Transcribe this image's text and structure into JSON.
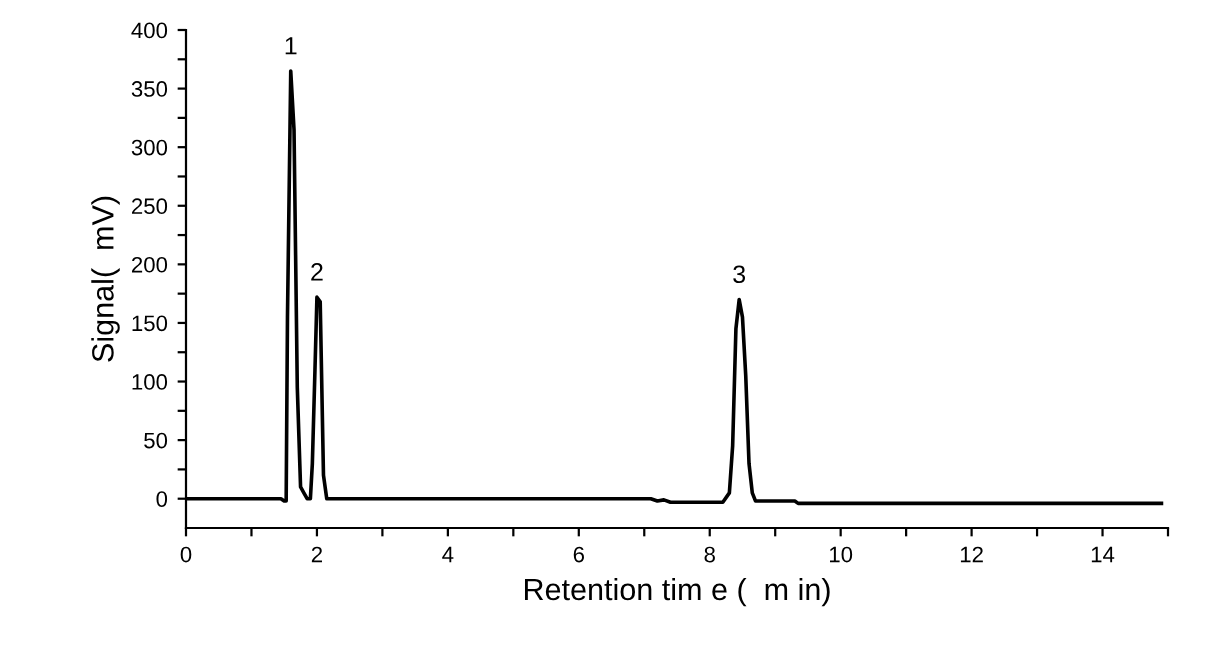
{
  "chart_data": {
    "type": "line",
    "xlabel": "Retention tim e (  m in)",
    "ylabel": "Signal(  mV)",
    "x": [
      0,
      1.45,
      1.5,
      1.53,
      1.55,
      1.6,
      1.65,
      1.7,
      1.75,
      1.8,
      1.85,
      1.9,
      1.93,
      1.97,
      2.0,
      2.05,
      2.1,
      2.15,
      7.1,
      7.2,
      7.3,
      7.4,
      8.2,
      8.3,
      8.35,
      8.4,
      8.45,
      8.5,
      8.55,
      8.6,
      8.65,
      8.7,
      9.3,
      9.35,
      14.9
    ],
    "series": [
      {
        "color": "#000000",
        "values": [
          0,
          0,
          -2,
          -2,
          155,
          365,
          315,
          95,
          10,
          5,
          0,
          0,
          30,
          110,
          172,
          168,
          20,
          0,
          0,
          -2,
          -1,
          -3,
          -3,
          5,
          45,
          145,
          170,
          155,
          105,
          30,
          5,
          -2,
          -2,
          -4,
          -4
        ]
      }
    ],
    "xlim": [
      0,
      15
    ],
    "ylim": [
      -25,
      400
    ],
    "xticks": [
      0,
      {
        "value": 1,
        "label": null
      },
      2,
      {
        "value": 3,
        "label": null
      },
      4,
      {
        "value": 5,
        "label": null
      },
      6,
      {
        "value": 7,
        "label": null
      },
      8,
      {
        "value": 9,
        "label": null
      },
      10,
      {
        "value": 11,
        "label": null
      },
      12,
      {
        "value": 13,
        "label": null
      },
      14,
      {
        "value": 15,
        "label": null
      }
    ],
    "yticks": [
      0,
      {
        "value": 25,
        "label": null
      },
      50,
      {
        "value": 75,
        "label": null
      },
      100,
      {
        "value": 125,
        "label": null
      },
      150,
      {
        "value": 175,
        "label": null
      },
      200,
      {
        "value": 225,
        "label": null
      },
      250,
      {
        "value": 275,
        "label": null
      },
      300,
      {
        "value": 325,
        "label": null
      },
      350,
      {
        "value": 375,
        "label": null
      },
      400
    ],
    "annotations": [
      {
        "text": "1",
        "x": 1.6,
        "y": 365
      },
      {
        "text": "2",
        "x": 2.0,
        "y": 172
      },
      {
        "text": "3",
        "x": 8.45,
        "y": 170
      }
    ],
    "grid": false,
    "legend": false,
    "marker": "none",
    "line_style": "solid"
  }
}
